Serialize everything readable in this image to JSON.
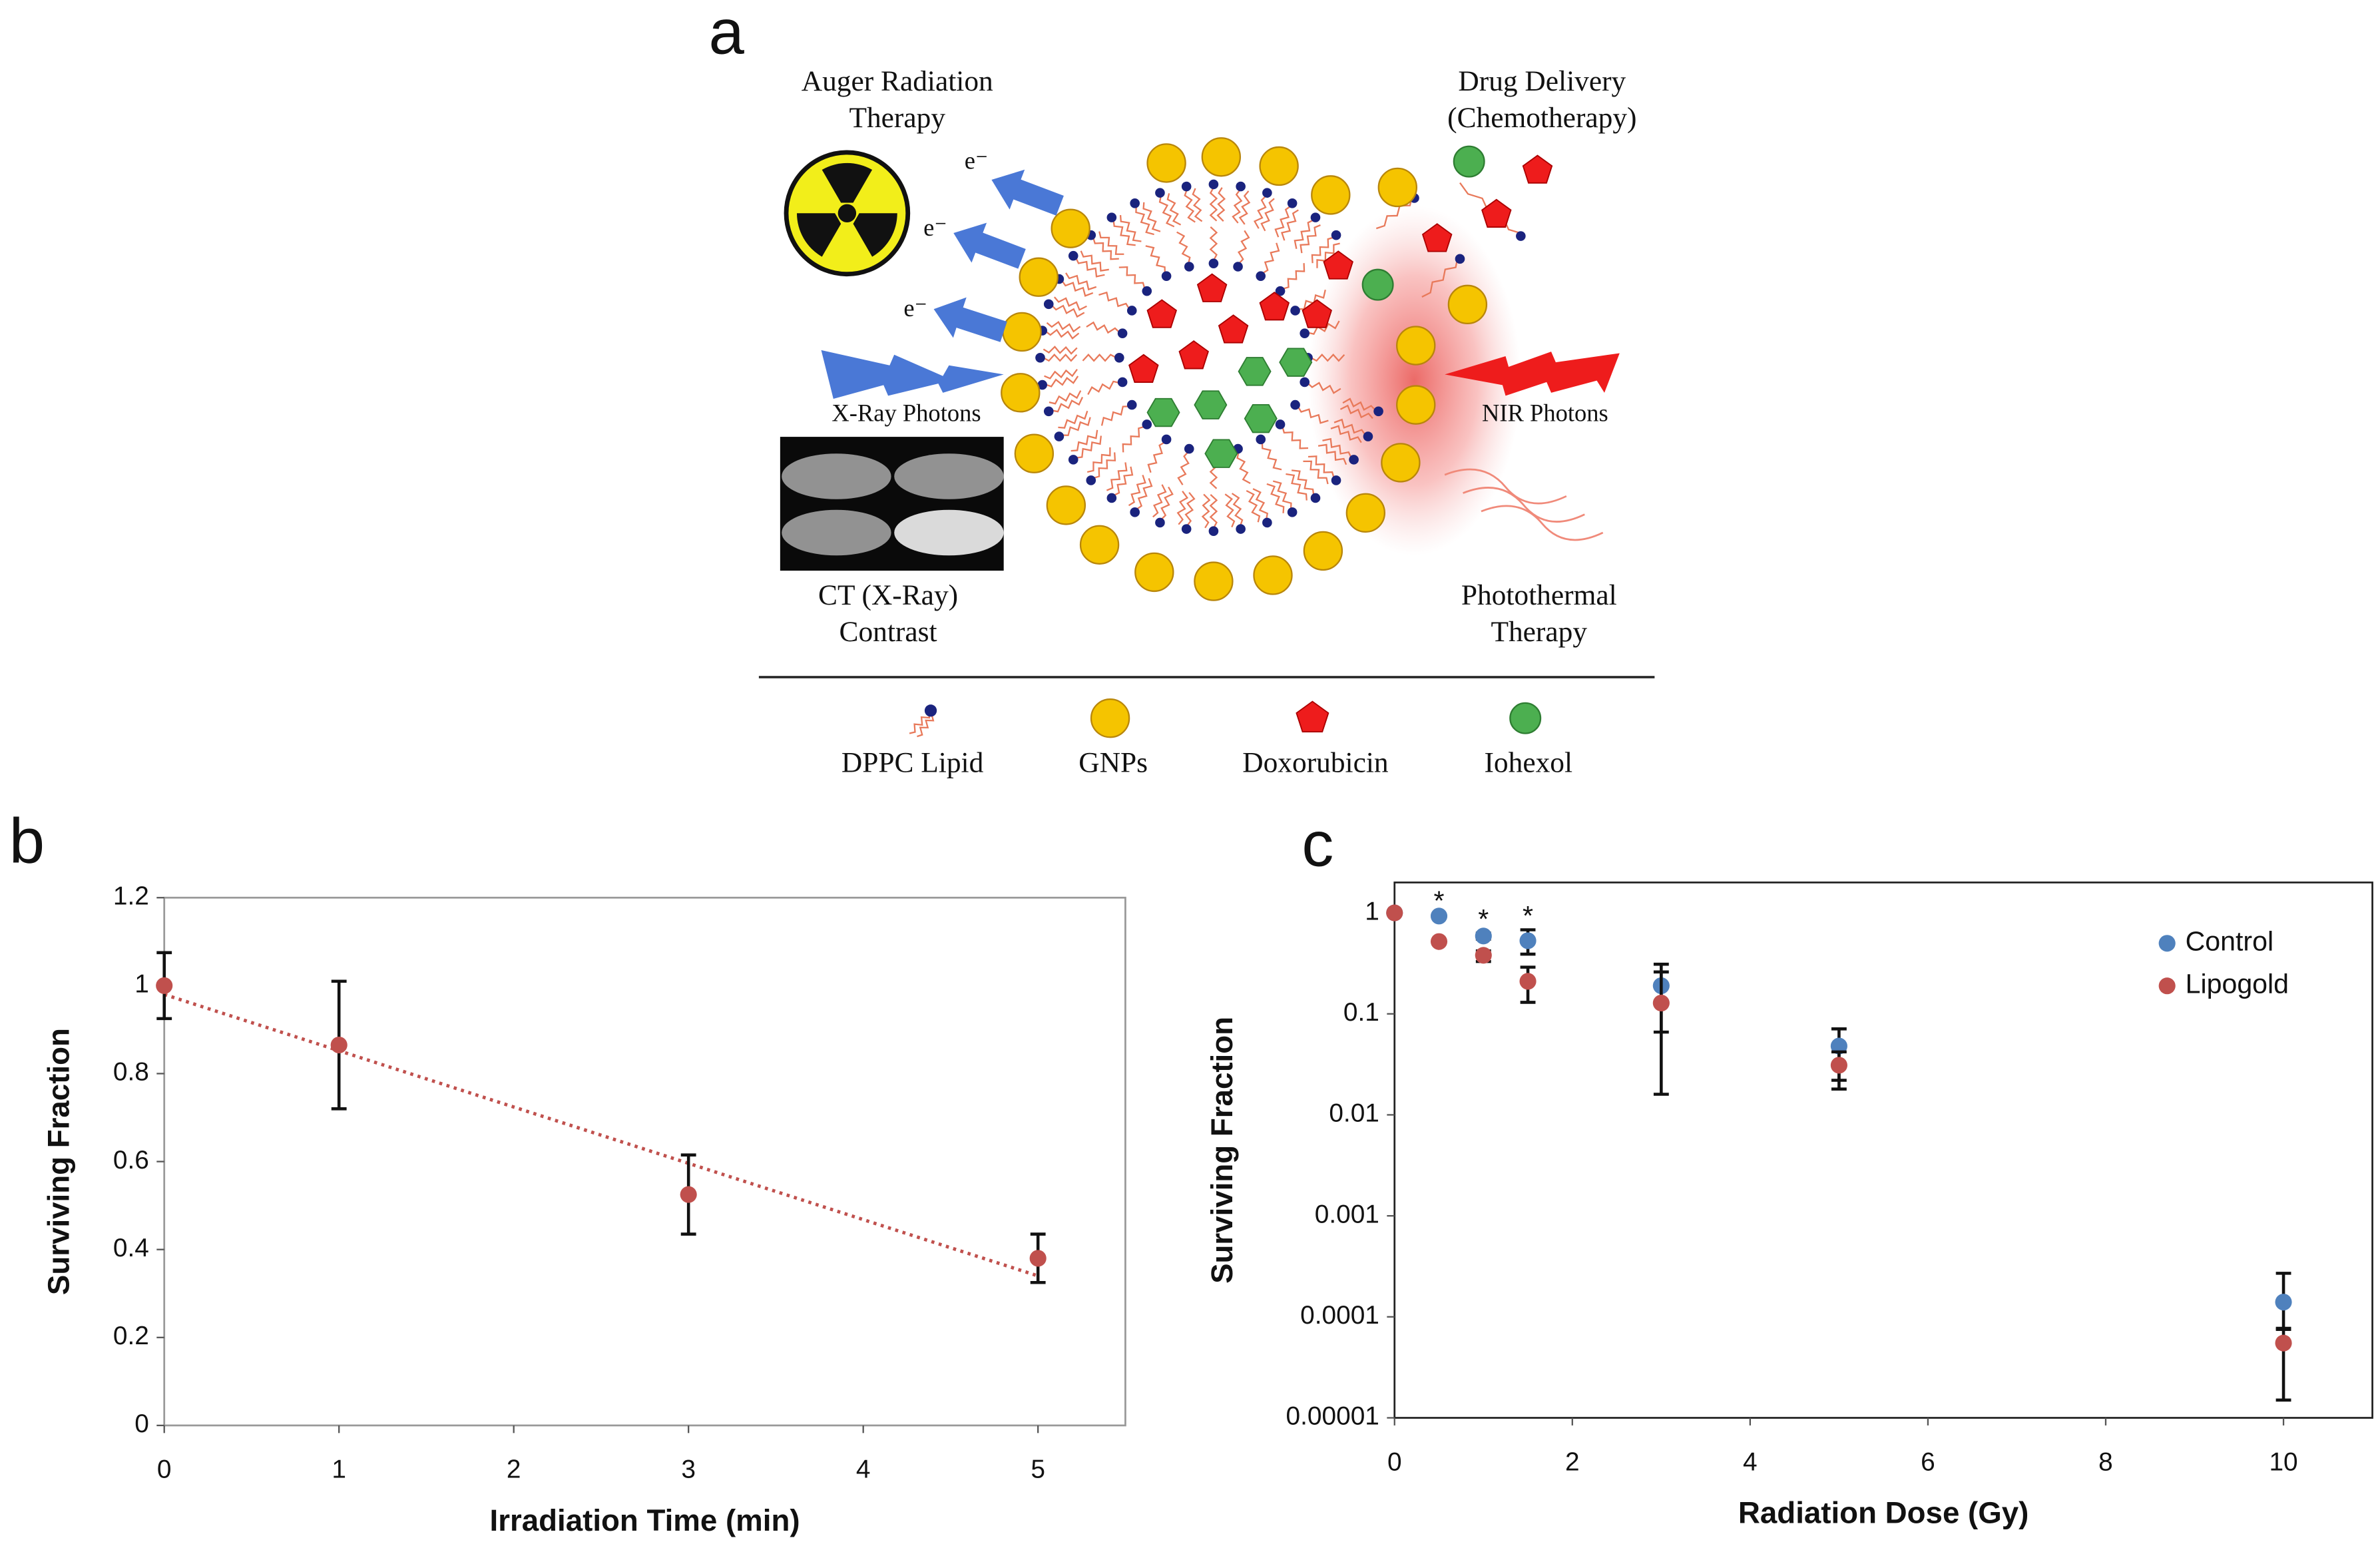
{
  "panel_labels": [
    "a",
    "b",
    "c"
  ],
  "diagram": {
    "auger_label": [
      "Auger Radiation",
      "Therapy"
    ],
    "drug_label": [
      "Drug Delivery",
      "(Chemotherapy)"
    ],
    "electrons": [
      "e⁻",
      "e⁻",
      "e⁻"
    ],
    "xray_label": "X-Ray Photons",
    "nir_label": "NIR Photons",
    "ct_label": [
      "CT (X-Ray)",
      "Contrast"
    ],
    "photothermal_label": [
      "Photothermal",
      "Therapy"
    ],
    "legend": [
      "DPPC Lipid",
      "GNPs",
      "Doxorubicin",
      "Iohexol"
    ]
  },
  "chart_data": [
    {
      "type": "scatter",
      "x_label": "Irradiation Time (min)",
      "y_label": "Surviving Fraction",
      "x": [
        0,
        1,
        3,
        5
      ],
      "values": [
        1,
        0.865,
        0.525,
        0.38
      ],
      "errors": [
        0.075,
        0.145,
        0.09,
        0.055
      ],
      "color": "#c0504d",
      "trendline": {
        "x": [
          0,
          5
        ],
        "values": [
          0.98,
          0.34
        ],
        "color": "#c0504d",
        "style": "dotted"
      },
      "xlim": [
        0,
        5.5
      ],
      "xticks": [
        0,
        1,
        2,
        3,
        4,
        5
      ],
      "ylim": [
        0,
        1.2
      ],
      "yticks": [
        0,
        0.2,
        0.4,
        0.6,
        0.8,
        1,
        1.2
      ],
      "grid": false
    },
    {
      "type": "scatter",
      "x_label": "Radiation Dose (Gy)",
      "y_label": "Surviving Fraction",
      "x": [
        0,
        0.5,
        1,
        1.5,
        3,
        5,
        10
      ],
      "series": [
        {
          "name": "Control",
          "color": "#4f81bd",
          "values": [
            1,
            0.93,
            0.59,
            0.53,
            0.19,
            0.048,
            0.00014
          ],
          "err_lower": [
            1,
            0.9,
            0.55,
            0.39,
            0.066,
            0.022,
            7.7e-05
          ],
          "err_upper": [
            1,
            0.96,
            0.63,
            0.68,
            0.31,
            0.071,
            0.00027
          ]
        },
        {
          "name": "Lipogold",
          "color": "#c0504d",
          "values": [
            1,
            0.52,
            0.38,
            0.21,
            0.128,
            0.031,
            5.5e-05
          ],
          "err_lower": [
            1,
            0.5,
            0.33,
            0.13,
            0.016,
            0.018,
            1.5e-05
          ],
          "err_upper": [
            1,
            0.54,
            0.42,
            0.29,
            0.26,
            0.042,
            7.5e-05
          ]
        }
      ],
      "annotations": [
        {
          "x": 0.5,
          "text": "*"
        },
        {
          "x": 1,
          "text": "*"
        },
        {
          "x": 1.5,
          "text": "*"
        }
      ],
      "xlim": [
        0,
        11
      ],
      "xticks": [
        0,
        2,
        4,
        6,
        8,
        10
      ],
      "ylim": [
        1e-05,
        2
      ],
      "yticks": [
        1e-05,
        0.0001,
        0.001,
        0.01,
        0.1,
        1
      ],
      "log_y": true,
      "grid": false,
      "legend": "upper right"
    }
  ]
}
